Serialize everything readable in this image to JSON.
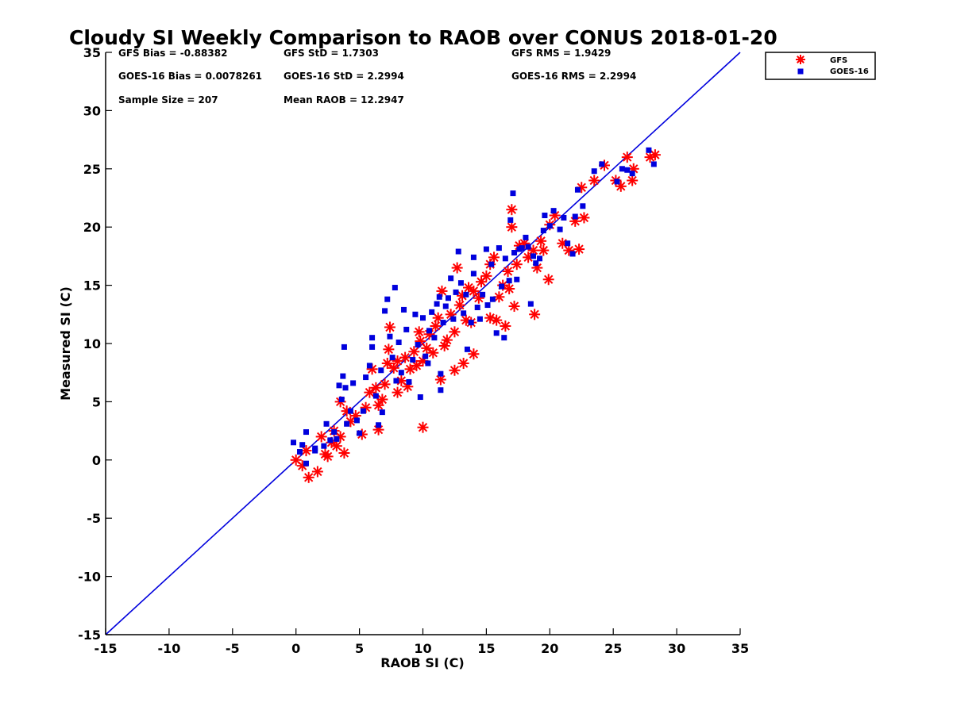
{
  "chart_data": {
    "type": "scatter",
    "title": "Cloudy SI Weekly Comparison to RAOB over CONUS 2018-01-20",
    "xlabel": "RAOB SI (C)",
    "ylabel": "Measured SI (C)",
    "xlim": [
      -15,
      35
    ],
    "ylim": [
      -15,
      35
    ],
    "xticks": [
      "-15",
      "-10",
      "-5",
      "0",
      "5",
      "10",
      "15",
      "20",
      "25",
      "30",
      "35"
    ],
    "yticks": [
      "-15",
      "-10",
      "-5",
      "0",
      "5",
      "10",
      "15",
      "20",
      "25",
      "30",
      "35"
    ],
    "grid": false,
    "legend_position": "top-right, outside plot",
    "reference_line": {
      "from": [
        -15,
        -15
      ],
      "to": [
        35,
        35
      ],
      "color": "#0000dd"
    },
    "stats": [
      "GFS Bias = -0.88382",
      "GFS StD = 1.7303",
      "GFS RMS = 1.9429",
      "GOES-16 Bias = 0.0078261",
      "GOES-16 StD = 2.2994",
      "GOES-16 RMS = 2.2994",
      "Sample Size = 207",
      "Mean RAOB = 12.2947"
    ],
    "series": [
      {
        "name": "GFS",
        "marker": "asterisk",
        "color": "#ff0000",
        "points": [
          [
            0,
            0
          ],
          [
            0.5,
            -0.5
          ],
          [
            1,
            -1.5
          ],
          [
            1.7,
            -1
          ],
          [
            0.8,
            0.8
          ],
          [
            2,
            2
          ],
          [
            2.3,
            0.5
          ],
          [
            2.5,
            0.3
          ],
          [
            2.8,
            1.5
          ],
          [
            3,
            2.5
          ],
          [
            3.2,
            1.2
          ],
          [
            3.5,
            2
          ],
          [
            3.8,
            0.6
          ],
          [
            3.5,
            5
          ],
          [
            4,
            4.2
          ],
          [
            4.3,
            3.3
          ],
          [
            4.7,
            3.8
          ],
          [
            5.2,
            2.2
          ],
          [
            5.5,
            4.5
          ],
          [
            5.8,
            5.8
          ],
          [
            6,
            7.8
          ],
          [
            6.3,
            6.2
          ],
          [
            6.5,
            2.6
          ],
          [
            6.5,
            4.7
          ],
          [
            6.8,
            5.2
          ],
          [
            7,
            6.5
          ],
          [
            7.2,
            8.3
          ],
          [
            7.3,
            9.5
          ],
          [
            7.4,
            11.4
          ],
          [
            7.7,
            7.9
          ],
          [
            8,
            5.8
          ],
          [
            8,
            8.5
          ],
          [
            8.3,
            6.8
          ],
          [
            8.6,
            8.8
          ],
          [
            8.8,
            6.3
          ],
          [
            9,
            7.8
          ],
          [
            9.3,
            9.3
          ],
          [
            9.5,
            8.1
          ],
          [
            9.7,
            11
          ],
          [
            9.8,
            10.2
          ],
          [
            10,
            2.8
          ],
          [
            10,
            8.5
          ],
          [
            10.3,
            9.6
          ],
          [
            10.5,
            10.8
          ],
          [
            10.8,
            9.2
          ],
          [
            11,
            11.5
          ],
          [
            11.2,
            12.2
          ],
          [
            11.4,
            6.9
          ],
          [
            11.5,
            14.5
          ],
          [
            11.7,
            9.8
          ],
          [
            11.9,
            10.3
          ],
          [
            12.2,
            12.5
          ],
          [
            12.5,
            11
          ],
          [
            12.7,
            16.5
          ],
          [
            12.9,
            13.3
          ],
          [
            12.5,
            7.7
          ],
          [
            13.1,
            14.1
          ],
          [
            13.2,
            8.3
          ],
          [
            13.4,
            12
          ],
          [
            13.6,
            14.8
          ],
          [
            13.8,
            11.8
          ],
          [
            14,
            9.1
          ],
          [
            14,
            14.5
          ],
          [
            14.4,
            13.9
          ],
          [
            14.6,
            15.3
          ],
          [
            15,
            15.8
          ],
          [
            15.3,
            16.8
          ],
          [
            15.3,
            12.2
          ],
          [
            15.6,
            17.4
          ],
          [
            15.8,
            12
          ],
          [
            16,
            14
          ],
          [
            16.3,
            15
          ],
          [
            16.5,
            11.5
          ],
          [
            16.7,
            16.2
          ],
          [
            16.8,
            14.7
          ],
          [
            17,
            20
          ],
          [
            17,
            21.5
          ],
          [
            17.2,
            13.2
          ],
          [
            17.4,
            16.8
          ],
          [
            17.6,
            18.4
          ],
          [
            18,
            18.6
          ],
          [
            18.3,
            17.4
          ],
          [
            18.7,
            18
          ],
          [
            18.8,
            12.5
          ],
          [
            19,
            16.5
          ],
          [
            19.3,
            18.8
          ],
          [
            19.5,
            18
          ],
          [
            19.9,
            15.5
          ],
          [
            20,
            20.2
          ],
          [
            20.4,
            21
          ],
          [
            21,
            18.6
          ],
          [
            21.5,
            18
          ],
          [
            22,
            20.5
          ],
          [
            22.3,
            18.1
          ],
          [
            22.5,
            23.4
          ],
          [
            22.7,
            20.8
          ],
          [
            23.5,
            24
          ],
          [
            24.3,
            25.3
          ],
          [
            25.2,
            24
          ],
          [
            25.6,
            23.5
          ],
          [
            26.1,
            26
          ],
          [
            26.5,
            24
          ],
          [
            26.6,
            25
          ],
          [
            27.9,
            26
          ],
          [
            28.3,
            26.2
          ]
        ]
      },
      {
        "name": "GOES-16",
        "marker": "square",
        "color": "#0000dd",
        "points": [
          [
            -0.2,
            1.5
          ],
          [
            0.3,
            0.7
          ],
          [
            0.5,
            1.3
          ],
          [
            0.8,
            -0.3
          ],
          [
            0.8,
            2.4
          ],
          [
            1.5,
            1
          ],
          [
            1.5,
            0.8
          ],
          [
            2.2,
            1.2
          ],
          [
            2.4,
            3.1
          ],
          [
            2.7,
            1.7
          ],
          [
            3,
            2.4
          ],
          [
            3.2,
            1.8
          ],
          [
            3.4,
            6.4
          ],
          [
            3.6,
            5.2
          ],
          [
            3.7,
            7.2
          ],
          [
            3.8,
            9.7
          ],
          [
            3.9,
            6.2
          ],
          [
            4,
            3.1
          ],
          [
            4.3,
            4.2
          ],
          [
            4.5,
            6.6
          ],
          [
            4.8,
            3.4
          ],
          [
            5,
            2.3
          ],
          [
            5.3,
            4.2
          ],
          [
            5.5,
            7.1
          ],
          [
            5.8,
            8.1
          ],
          [
            6,
            9.7
          ],
          [
            6,
            10.5
          ],
          [
            6.3,
            5.5
          ],
          [
            6.5,
            3
          ],
          [
            6.7,
            7.7
          ],
          [
            6.8,
            4.1
          ],
          [
            7,
            12.8
          ],
          [
            7.2,
            13.8
          ],
          [
            7.4,
            10.6
          ],
          [
            7.6,
            8.8
          ],
          [
            7.8,
            14.8
          ],
          [
            7.9,
            6.8
          ],
          [
            8.1,
            10.1
          ],
          [
            8.3,
            7.5
          ],
          [
            8.5,
            12.9
          ],
          [
            8.7,
            11.2
          ],
          [
            8.9,
            6.7
          ],
          [
            9.2,
            8.6
          ],
          [
            9.4,
            12.5
          ],
          [
            9.6,
            9.9
          ],
          [
            9.8,
            5.4
          ],
          [
            10,
            12.2
          ],
          [
            10.2,
            8.9
          ],
          [
            10.4,
            8.3
          ],
          [
            10.5,
            11.1
          ],
          [
            10.7,
            12.7
          ],
          [
            10.9,
            10.5
          ],
          [
            11.1,
            13.4
          ],
          [
            11.3,
            14
          ],
          [
            11.4,
            6
          ],
          [
            11.4,
            7.4
          ],
          [
            11.6,
            11.8
          ],
          [
            11.8,
            13.2
          ],
          [
            12,
            13.9
          ],
          [
            12.2,
            15.6
          ],
          [
            12.4,
            12.1
          ],
          [
            12.6,
            14.4
          ],
          [
            12.8,
            17.9
          ],
          [
            13,
            15.2
          ],
          [
            13.2,
            12.6
          ],
          [
            13.4,
            14.2
          ],
          [
            13.5,
            9.5
          ],
          [
            13.8,
            11.8
          ],
          [
            14,
            16
          ],
          [
            14,
            17.4
          ],
          [
            14.3,
            13.1
          ],
          [
            14.5,
            12.1
          ],
          [
            14.7,
            14.2
          ],
          [
            15,
            18.1
          ],
          [
            15.1,
            13.3
          ],
          [
            15.4,
            16.8
          ],
          [
            15.5,
            13.8
          ],
          [
            15.8,
            10.9
          ],
          [
            16,
            18.2
          ],
          [
            16.2,
            14.9
          ],
          [
            16.4,
            10.5
          ],
          [
            16.5,
            17.3
          ],
          [
            16.8,
            15.4
          ],
          [
            16.9,
            20.6
          ],
          [
            17.1,
            22.9
          ],
          [
            17.2,
            17.8
          ],
          [
            17.4,
            15.5
          ],
          [
            17.6,
            18.1
          ],
          [
            17.8,
            18.2
          ],
          [
            18.1,
            19.1
          ],
          [
            18.3,
            18.3
          ],
          [
            18.5,
            13.4
          ],
          [
            18.7,
            17.5
          ],
          [
            18.9,
            16.9
          ],
          [
            19.2,
            17.3
          ],
          [
            19.5,
            19.7
          ],
          [
            19.6,
            21
          ],
          [
            20,
            20.1
          ],
          [
            20.3,
            21.4
          ],
          [
            20.8,
            19.8
          ],
          [
            21.1,
            20.8
          ],
          [
            21.4,
            18.6
          ],
          [
            21.8,
            17.7
          ],
          [
            22,
            20.9
          ],
          [
            22.2,
            23.2
          ],
          [
            22.6,
            21.8
          ],
          [
            23.5,
            24.8
          ],
          [
            24.1,
            25.4
          ],
          [
            25.3,
            23.9
          ],
          [
            25.7,
            25
          ],
          [
            26.1,
            24.9
          ],
          [
            26.5,
            24.6
          ],
          [
            27.8,
            26.6
          ],
          [
            28.2,
            25.4
          ]
        ]
      }
    ]
  }
}
